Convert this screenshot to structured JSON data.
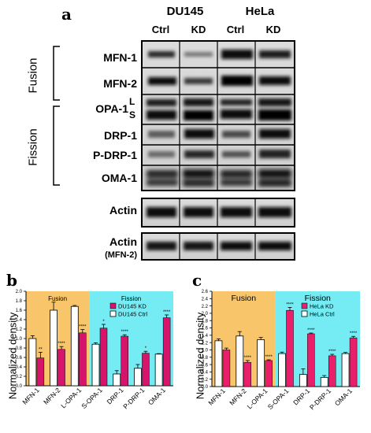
{
  "panel_a": {
    "letter": "a",
    "cell_lines": [
      "DU145",
      "HeLa"
    ],
    "conditions": [
      "Ctrl",
      "KD",
      "Ctrl",
      "KD"
    ],
    "group_labels": {
      "fusion": "Fusion",
      "fission": "Fission"
    },
    "rows": [
      {
        "label": "MFN-1"
      },
      {
        "label": "MFN-2"
      },
      {
        "label": "OPA-1",
        "sub": [
          "L",
          "S"
        ]
      },
      {
        "label": "DRP-1"
      },
      {
        "label": "P-DRP-1"
      },
      {
        "label": "OMA-1"
      }
    ],
    "actin": {
      "label": "Actin"
    },
    "actin2": {
      "label": "Actin",
      "sub": "(MFN-2)"
    }
  },
  "chart_data": [
    {
      "type": "bar",
      "panel": "b",
      "ylabel": "Normalized density",
      "ylim": [
        0,
        2.0
      ],
      "yticks": [
        "0.0",
        "0.2",
        "0.4",
        "0.6",
        "0.8",
        "1.0",
        "1.2",
        "1.4",
        "1.6",
        "1.8",
        "2.0"
      ],
      "categories": [
        "MFN-1",
        "MFN-2",
        "L-OPA-1",
        "S-OPA-1",
        "DRP-1",
        "P-DRP-1",
        "OMA-1"
      ],
      "group_labels": {
        "fusion": "Fusion",
        "fission": "Fission"
      },
      "series": [
        {
          "name": "DU145 Ctrl",
          "values": [
            1.0,
            1.6,
            1.68,
            0.88,
            0.25,
            0.37,
            0.67
          ]
        },
        {
          "name": "DU145 KD",
          "values": [
            0.59,
            0.77,
            1.12,
            1.22,
            1.05,
            0.69,
            1.44
          ]
        }
      ],
      "errors": {
        "ctrl": [
          0.06,
          0.17,
          0.02,
          0.03,
          0.07,
          0.08,
          0.01
        ],
        "kd": [
          0.12,
          0.06,
          0.07,
          0.08,
          0.03,
          0.04,
          0.06
        ]
      },
      "significance": [
        "**",
        "****",
        "****",
        "*",
        "****",
        "*",
        "****"
      ],
      "legend_items": [
        "DU145 KD",
        "DU145 Ctrl"
      ],
      "colors": {
        "kd": "#d6146c",
        "ctrl": "#ffffff",
        "fusion_bg": "#f8c56a",
        "fission_bg": "#75ecf4"
      }
    },
    {
      "type": "bar",
      "panel": "c",
      "ylabel": "Normalized density",
      "ylim": [
        0,
        2.6
      ],
      "yticks": [
        "0.0",
        "0.2",
        "0.4",
        "0.6",
        "0.8",
        "1.0",
        "1.2",
        "1.4",
        "1.6",
        "1.8",
        "2.0",
        "2.2",
        "2.4",
        "2.6"
      ],
      "categories": [
        "MFN-1",
        "MFN-2",
        "L-OPA-1",
        "S-OPA-1",
        "DRP-1",
        "P-DRP-1",
        "OMA-1"
      ],
      "group_labels": {
        "fusion": "Fusion",
        "fission": "Fission"
      },
      "series": [
        {
          "name": "HeLa Ctrl",
          "values": [
            1.25,
            1.38,
            1.28,
            0.9,
            0.33,
            0.25,
            0.9
          ]
        },
        {
          "name": "HeLa KD",
          "values": [
            1.0,
            0.66,
            0.71,
            2.08,
            1.44,
            0.84,
            1.33
          ]
        }
      ],
      "errors": {
        "ctrl": [
          0.05,
          0.12,
          0.06,
          0.04,
          0.15,
          0.05,
          0.03
        ],
        "kd": [
          0.05,
          0.05,
          0.02,
          0.08,
          0.02,
          0.04,
          0.04
        ]
      },
      "significance": [
        "",
        "****",
        "****",
        "****",
        "****",
        "****",
        "****"
      ],
      "legend_items": [
        "HeLa KD",
        "HeLa Ctrl"
      ],
      "colors": {
        "kd": "#ea1f6c",
        "ctrl": "#ffffff",
        "fusion_bg": "#f8c56a",
        "fission_bg": "#75ecf4"
      }
    }
  ]
}
